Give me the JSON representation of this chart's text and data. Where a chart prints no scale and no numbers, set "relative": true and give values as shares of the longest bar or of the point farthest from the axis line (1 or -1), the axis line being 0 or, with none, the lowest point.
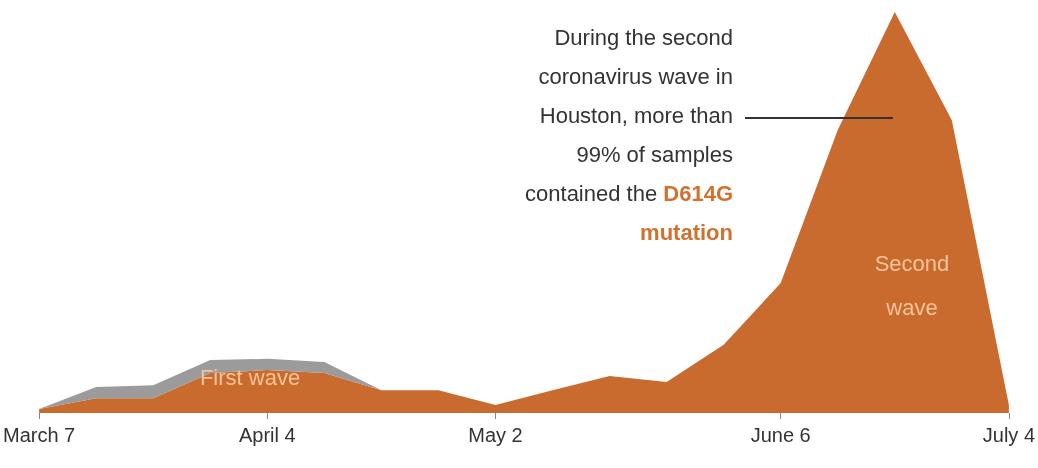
{
  "chart_data": {
    "type": "area",
    "stacked": true,
    "relative": true,
    "x": [
      "--03-07",
      "--03-14",
      "--03-21",
      "--03-28",
      "--04-04",
      "--04-11",
      "--04-18",
      "--04-25",
      "--05-02",
      "--05-09",
      "--05-16",
      "--05-23",
      "--05-30",
      "--06-06",
      "--06-13",
      "--06-20",
      "--06-27",
      "--07-04"
    ],
    "series": [
      {
        "color": "#c96a2e",
        "values": [
          0.01,
          0.037,
          0.037,
          0.1,
          0.107,
          0.1,
          0.057,
          0.057,
          0.02,
          0.057,
          0.092,
          0.077,
          0.17,
          0.324,
          0.706,
          1.0,
          0.73,
          0.02
        ]
      },
      {
        "color": "#9b9b9b",
        "values": [
          0,
          0.028,
          0.032,
          0.032,
          0.028,
          0.027,
          0,
          0,
          0,
          0,
          0,
          0,
          0,
          0,
          0,
          0,
          0,
          0
        ]
      }
    ],
    "xlim": [
      "--03-07",
      "--07-04"
    ],
    "xticks": [
      {
        "value": "--03-07",
        "label": "March 7"
      },
      {
        "value": "--04-04",
        "label": "April 4"
      },
      {
        "value": "--05-02",
        "label": "May 2"
      },
      {
        "value": "--06-06",
        "label": "June 6"
      },
      {
        "value": "--07-04",
        "label": "July 4"
      }
    ],
    "annotations": [
      "During the second coronavirus wave in Houston, more than 99% of samples contained the",
      "D614G mutation",
      "First wave",
      "Second wave"
    ]
  }
}
